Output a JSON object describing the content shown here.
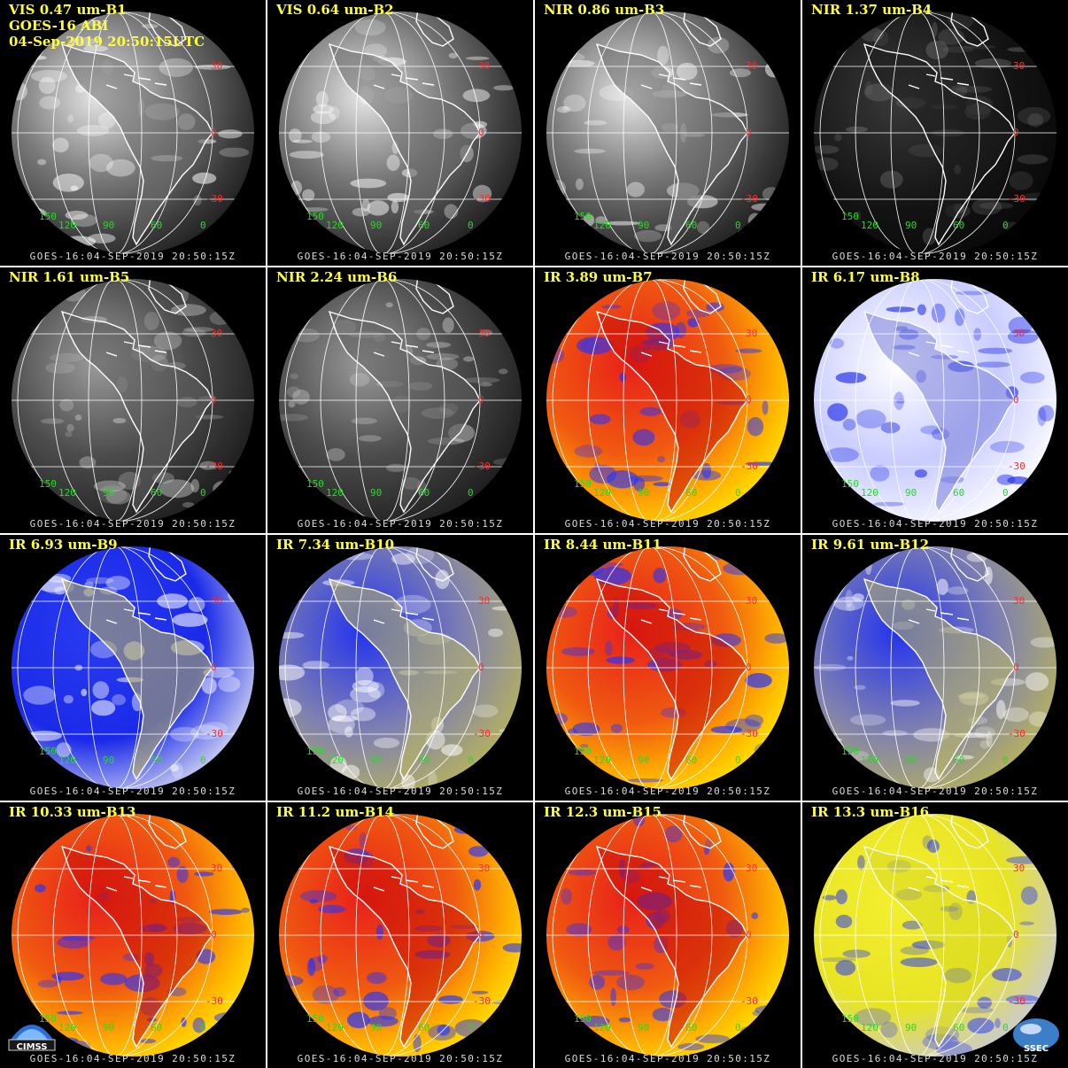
{
  "header": {
    "satellite": "GOES-16 ABI",
    "datetime": "04-Sep-2019 20:50:15UTC"
  },
  "footer_stamp": "GOES-16:04-SEP-2019 20:50:15Z",
  "latitude_labels": [
    "30",
    "0",
    "-30"
  ],
  "longitude_labels": [
    "150",
    "120",
    "90",
    "60",
    "0"
  ],
  "logos": {
    "left": "CIMSS",
    "right": "SSEC"
  },
  "colors": {
    "label_text": "#ffff33",
    "lat_labels": "#ff2a2a",
    "lon_labels": "#22dd22",
    "grid_lines": "#ffffff"
  },
  "panels": [
    {
      "label": "VIS 0.47 um-B1",
      "style": "vis"
    },
    {
      "label": "VIS 0.64 um-B2",
      "style": "vis"
    },
    {
      "label": "NIR 0.86 um-B3",
      "style": "vis"
    },
    {
      "label": "NIR 1.37 um-B4",
      "style": "dark"
    },
    {
      "label": "NIR 1.61 um-B5",
      "style": "nir"
    },
    {
      "label": "NIR 2.24 um-B6",
      "style": "nir"
    },
    {
      "label": "IR 3.89 um-B7",
      "style": "ir"
    },
    {
      "label": "IR 6.17 um-B8",
      "style": "wv1"
    },
    {
      "label": "IR 6.93 um-B9",
      "style": "wv2"
    },
    {
      "label": "IR 7.34 um-B10",
      "style": "wv3"
    },
    {
      "label": "IR 8.44 um-B11",
      "style": "ir"
    },
    {
      "label": "IR 9.61 um-B12",
      "style": "wv3"
    },
    {
      "label": "IR 10.33 um-B13",
      "style": "ir"
    },
    {
      "label": "IR 11.2 um-B14",
      "style": "ir"
    },
    {
      "label": "IR 12.3 um-B15",
      "style": "ir"
    },
    {
      "label": "IR 13.3 um-B16",
      "style": "yel"
    }
  ]
}
